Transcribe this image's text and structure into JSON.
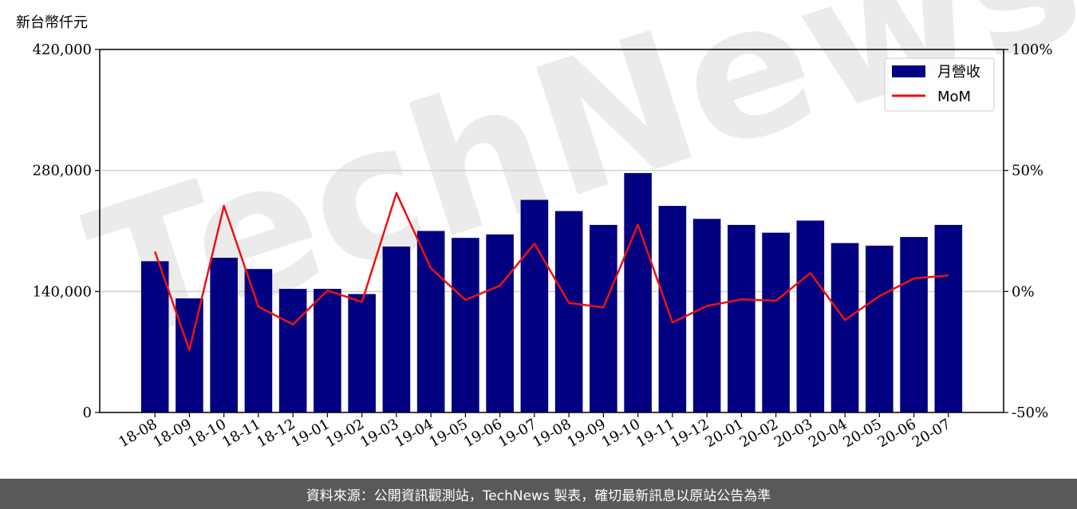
{
  "chart_data": {
    "type": "bar",
    "unit_label": "新台幣仟元",
    "categories": [
      "18-08",
      "18-09",
      "18-10",
      "18-11",
      "18-12",
      "19-01",
      "19-02",
      "19-03",
      "19-04",
      "19-05",
      "19-06",
      "19-07",
      "19-08",
      "19-09",
      "19-10",
      "19-11",
      "19-12",
      "20-01",
      "20-02",
      "20-03",
      "20-04",
      "20-05",
      "20-06",
      "20-07"
    ],
    "series": [
      {
        "name": "月營收",
        "type": "bar",
        "axis": "left",
        "color": "#000080",
        "values": [
          175000,
          132000,
          179000,
          166000,
          143000,
          143000,
          137000,
          192000,
          210000,
          202000,
          206000,
          246000,
          233000,
          217000,
          277000,
          239000,
          224000,
          217000,
          208000,
          222000,
          196000,
          193000,
          203000,
          217000
        ]
      },
      {
        "name": "MoM",
        "type": "line",
        "axis": "right",
        "color": "#ee1111",
        "values": [
          16.5,
          -24.2,
          35.4,
          -6.3,
          -13.6,
          0.4,
          -4.3,
          40.7,
          9.6,
          -3.5,
          2.4,
          19.8,
          -4.7,
          -6.6,
          27.6,
          -12.8,
          -6.0,
          -3.3,
          -3.8,
          7.6,
          -11.8,
          -1.9,
          5.4,
          6.6
        ]
      }
    ],
    "y_left": {
      "min": 0,
      "max": 420000,
      "ticks": [
        0,
        140000,
        280000,
        420000
      ],
      "tick_labels": [
        "0",
        "140,000",
        "280,000",
        "420,000"
      ]
    },
    "y_right": {
      "min": -50,
      "max": 100,
      "ticks": [
        -50,
        0,
        50,
        100
      ],
      "tick_labels": [
        "-50%",
        "0%",
        "50%",
        "100%"
      ]
    },
    "grid": "horizontal",
    "legend": "top-right"
  },
  "watermark": "TechNews",
  "footer": {
    "text": "資料來源：公開資訊觀測站，TechNews 製表，確切最新訊息以原站公告為準"
  }
}
